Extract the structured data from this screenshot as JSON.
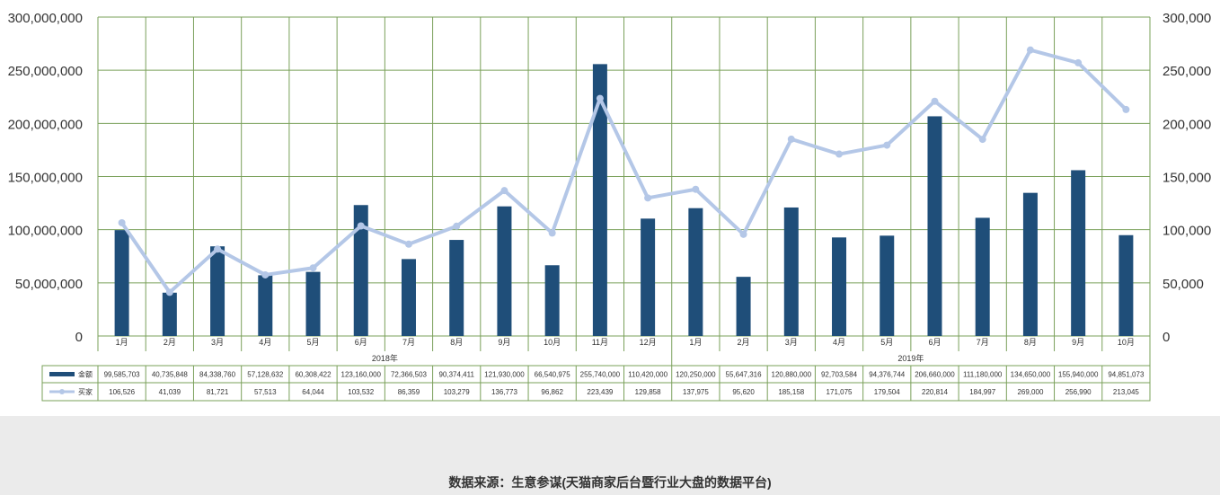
{
  "chart_data": {
    "type": "bar+line",
    "months": [
      "1月",
      "2月",
      "3月",
      "4月",
      "5月",
      "6月",
      "7月",
      "8月",
      "9月",
      "10月",
      "11月",
      "12月",
      "1月",
      "2月",
      "3月",
      "4月",
      "5月",
      "6月",
      "7月",
      "8月",
      "9月",
      "10月"
    ],
    "year_groups": [
      {
        "label": "2018年",
        "start": 0,
        "count": 12
      },
      {
        "label": "2019年",
        "start": 12,
        "count": 10
      }
    ],
    "series": [
      {
        "name": "金额",
        "type": "bar",
        "axis": "left",
        "color": "#1f4e79",
        "values": [
          99585703,
          40735848,
          84338760,
          57128632,
          60308422,
          123160000,
          72366503,
          90374411,
          121930000,
          66540975,
          255740000,
          110420000,
          120250000,
          55647316,
          120880000,
          92703584,
          94376744,
          206660000,
          111180000,
          134650000,
          155940000,
          94851073
        ],
        "labels": [
          "99,585,703",
          "40,735,848",
          "84,338,760",
          "57,128,632",
          "60,308,422",
          "123,160,000",
          "72,366,503",
          "90,374,411",
          "121,930,000",
          "66,540,975",
          "255,740,000",
          "110,420,000",
          "120,250,000",
          "55,647,316",
          "120,880,000",
          "92,703,584",
          "94,376,744",
          "206,660,000",
          "111,180,000",
          "134,650,000",
          "155,940,000",
          "94,851,073"
        ]
      },
      {
        "name": "买家",
        "type": "line",
        "axis": "right",
        "color": "#b4c7e7",
        "values": [
          106526,
          41039,
          81721,
          57513,
          64044,
          103532,
          86359,
          103279,
          136773,
          96862,
          223439,
          129858,
          137975,
          95620,
          185158,
          171075,
          179504,
          220814,
          184997,
          269000,
          256990,
          213045
        ],
        "labels": [
          "106,526",
          "41,039",
          "81,721",
          "57,513",
          "64,044",
          "103,532",
          "86,359",
          "103,279",
          "136,773",
          "96,862",
          "223,439",
          "129,858",
          "137,975",
          "95,620",
          "185,158",
          "171,075",
          "179,504",
          "220,814",
          "184,997",
          "269,000",
          "256,990",
          "213,045"
        ]
      }
    ],
    "y_left": {
      "min": 0,
      "max": 300000000,
      "ticks": [
        "0",
        "50,000,000",
        "100,000,000",
        "150,000,000",
        "200,000,000",
        "250,000,000",
        "300,000,000"
      ]
    },
    "y_right": {
      "min": 0,
      "max": 300000,
      "ticks": [
        "0",
        "50,000",
        "100,000",
        "150,000",
        "200,000",
        "250,000",
        "300,000"
      ]
    },
    "grid": true,
    "colors": {
      "grid": "#7aa05a",
      "bar": "#1f4e79",
      "line": "#b4c7e7",
      "axis_text": "#333333"
    },
    "data_table": true
  },
  "caption": "数据来源：生意参谋(天猫商家后台暨行业大盘的数据平台)"
}
